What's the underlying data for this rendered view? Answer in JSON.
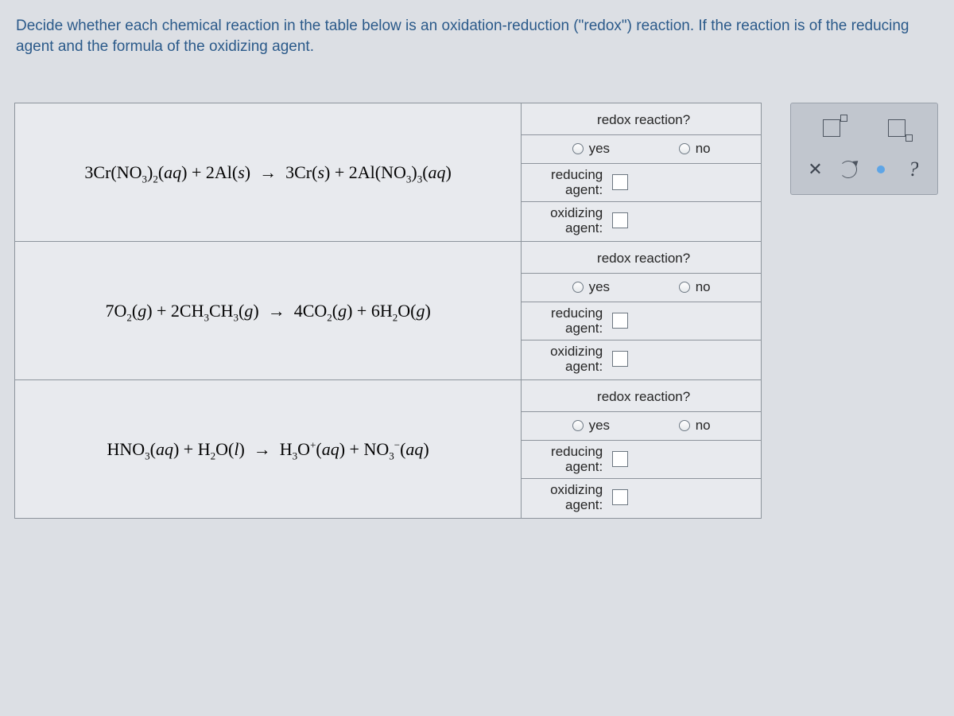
{
  "instructions": "Decide whether each chemical reaction in the table below is an oxidation-reduction (\"redox\") reaction. If the reaction is of the reducing agent and the formula of the oxidizing agent.",
  "header": "redox reaction?",
  "yes": "yes",
  "no": "no",
  "reducing_label_top": "reducing",
  "reducing_label_bot": "agent:",
  "oxidizing_label_top": "oxidizing",
  "oxidizing_label_bot": "agent:",
  "reactions": {
    "r1": "3Cr(NO₃)₂(aq) + 2Al(s)  →  3Cr(s) + 2Al(NO₃)₃(aq)",
    "r2": "7O₂(g) + 2CH₃CH₃(g)  →  4CO₂(g) + 6H₂O(g)",
    "r3": "HNO₃(aq) + H₂O(l)  →  H₃O⁺(aq) + NO₃⁻(aq)"
  },
  "colors": {
    "page_bg": "#dcdfe4",
    "instruction_text": "#2b5a8a",
    "table_border": "#8d949c",
    "cell_bg": "#e8eaee",
    "toolbox_bg": "#c1c6ce"
  }
}
